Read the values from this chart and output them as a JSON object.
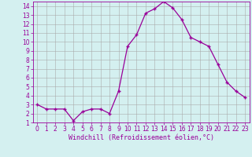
{
  "x": [
    0,
    1,
    2,
    3,
    4,
    5,
    6,
    7,
    8,
    9,
    10,
    11,
    12,
    13,
    14,
    15,
    16,
    17,
    18,
    19,
    20,
    21,
    22,
    23
  ],
  "y": [
    3.0,
    2.5,
    2.5,
    2.5,
    1.2,
    2.2,
    2.5,
    2.5,
    2.0,
    4.5,
    9.5,
    10.8,
    13.2,
    13.7,
    14.5,
    13.8,
    12.5,
    10.5,
    10.0,
    9.5,
    7.5,
    5.5,
    4.5,
    3.8
  ],
  "line_color": "#990099",
  "marker": "+",
  "marker_size": 3,
  "marker_linewidth": 1.0,
  "bg_color": "#d4f0f0",
  "grid_color": "#aaaaaa",
  "xlabel": "Windchill (Refroidissement éolien,°C)",
  "xlim": [
    -0.5,
    23.5
  ],
  "ylim": [
    1,
    14.5
  ],
  "yticks": [
    1,
    2,
    3,
    4,
    5,
    6,
    7,
    8,
    9,
    10,
    11,
    12,
    13,
    14
  ],
  "xticks": [
    0,
    1,
    2,
    3,
    4,
    5,
    6,
    7,
    8,
    9,
    10,
    11,
    12,
    13,
    14,
    15,
    16,
    17,
    18,
    19,
    20,
    21,
    22,
    23
  ],
  "tick_label_color": "#990099",
  "xlabel_color": "#990099",
  "spine_color": "#990099",
  "line_width": 0.9,
  "tick_fontsize": 5.5,
  "xlabel_fontsize": 6.0
}
